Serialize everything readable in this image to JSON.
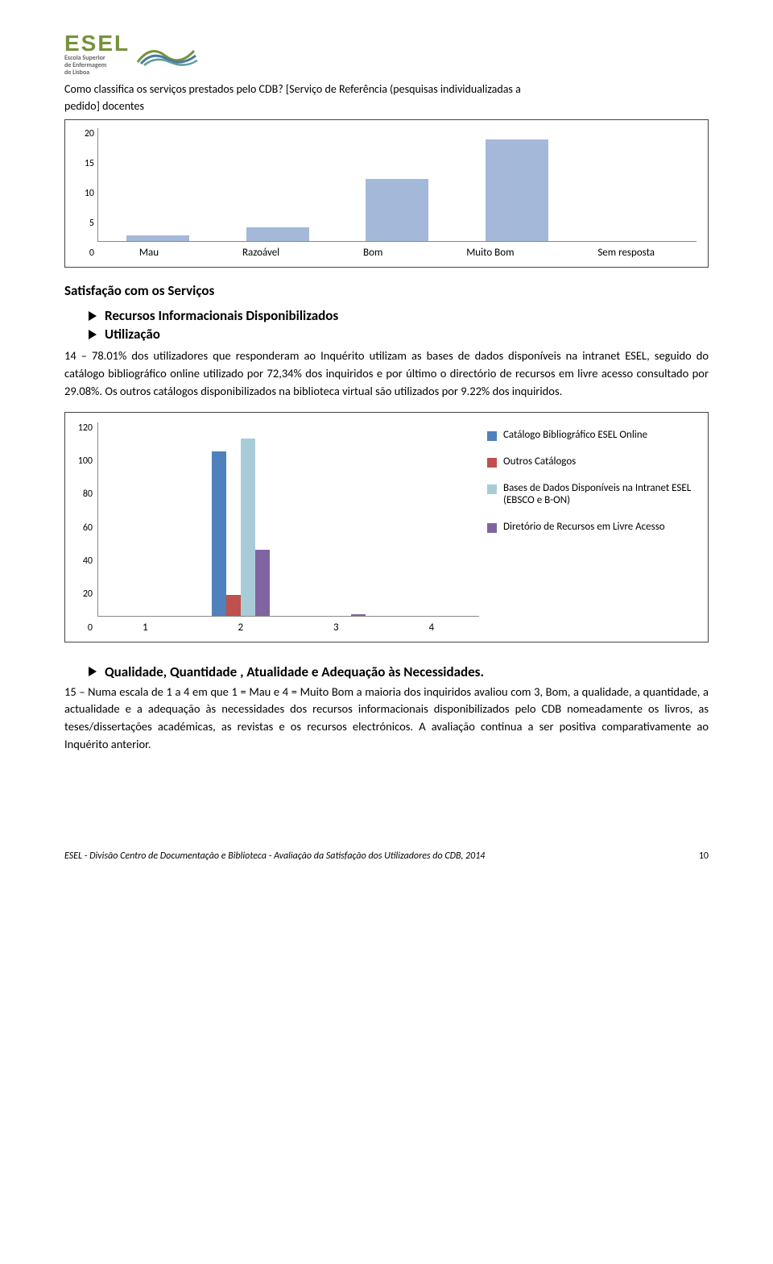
{
  "logo": {
    "name": "ESEL",
    "sub1": "Escola Superior",
    "sub2": "de Enfermagem",
    "sub3": "de Lisboa"
  },
  "question": {
    "line1": "Como classifica os serviços prestados pelo CDB? [Serviço de Referência (pesquisas individualizadas a",
    "line2": "pedido] docentes"
  },
  "chart1": {
    "categories": [
      "Mau",
      "Razoável",
      "Bom",
      "Muito Bom",
      "Sem resposta"
    ],
    "values": [
      1,
      2.5,
      11,
      18,
      0
    ],
    "bar_color": "#a4b8d9",
    "ymax": 20,
    "yticks": [
      0,
      5,
      10,
      15,
      20
    ],
    "label_fontsize": 12
  },
  "section1": {
    "title": "Satisfação com os Serviços",
    "bullets": [
      "Recursos Informacionais Disponibilizados",
      "Utilização"
    ],
    "para_prefix": "14 – 78.01%",
    "para": " dos utilizadores que  responderam ao  Inquérito  utilizam  as  bases  de  dados disponíveis na intranet ESEL, seguido do catálogo bibliográfico online utilizado por 72,34% dos inquiridos  e  por  último  o  directório  de  recursos  em  livre  acesso  consultado  por  29.08%.    Os outros catálogos disponibilizados na biblioteca virtual são utilizados por 9.22% dos inquiridos."
  },
  "chart2": {
    "xcats": [
      "1",
      "2",
      "3",
      "4"
    ],
    "yticks": [
      0,
      20,
      40,
      60,
      80,
      100,
      120
    ],
    "ymax": 120,
    "series": [
      {
        "label": "Catálogo Bibliográfico ESEL Online",
        "color": "#4f81bd",
        "values": [
          0,
          102,
          0,
          0
        ]
      },
      {
        "label": "Outros Catálogos",
        "color": "#c0504d",
        "values": [
          0,
          13,
          0,
          0
        ]
      },
      {
        "label": "Bases de Dados Disponíveis na Intranet ESEL (EBSCO e B-ON)",
        "color": "#a8ccd7",
        "values": [
          0,
          110,
          0,
          0
        ]
      },
      {
        "label": "Diretório de Recursos em Livre Acesso",
        "color": "#8064a2",
        "values": [
          0,
          41,
          1,
          0
        ]
      }
    ],
    "label_fontsize": 12
  },
  "section2": {
    "bullet": "Qualidade, Quantidade , Atualidade e Adequação às Necessidades.",
    "para_prefix": "15 – ",
    "para": "Numa escala de 1 a 4 em que 1 = Mau e 4 = Muito Bom a maioria dos inquiridos avaliou com  3,  Bom,  a  qualidade,  a  quantidade,  a  actualidade  e  a  adequação  às  necessidades  dos recursos    informacionais    disponibilizados    pelo    CDB    nomeadamente    os    livros,    as teses/dissertações académicas, as revistas e os recursos electrónicos. A avaliação continua a ser positiva comparativamente ao Inquérito anterior."
  },
  "footer": {
    "left": "ESEL - Divisão Centro de Documentação e Biblioteca - Avaliação da Satisfação dos Utilizadores do CDB, 2014",
    "page": "10"
  }
}
